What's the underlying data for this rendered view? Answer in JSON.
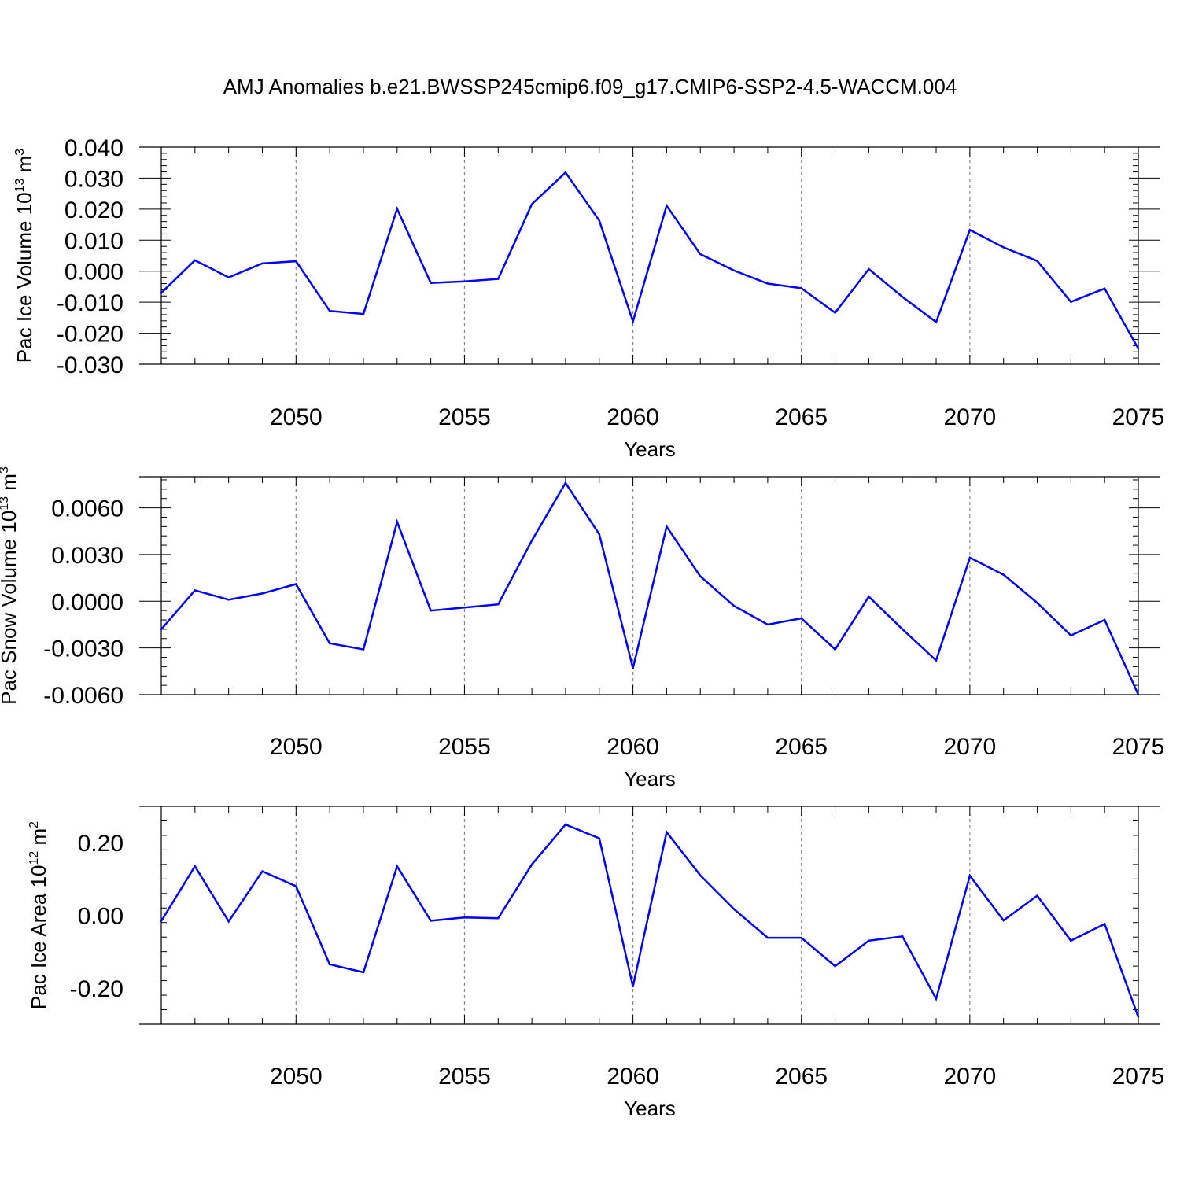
{
  "title": "AMJ Anomalies b.e21.BWSSP245cmip6.f09_g17.CMIP6-SSP2-4.5-WACCM.004",
  "colors": {
    "line": "#0000ff",
    "axis": "#000000",
    "grid": "#888888"
  },
  "chart_data": [
    {
      "type": "line",
      "title": "",
      "xlabel": "Years",
      "ylabel": {
        "base": "Pac Ice Volume 10",
        "exp": "13",
        "unit": " m",
        "unit_exp": "3"
      },
      "xlim": [
        2046,
        2075
      ],
      "ylim": [
        -0.03,
        0.04
      ],
      "xticks": [
        2050,
        2055,
        2060,
        2065,
        2070,
        2075
      ],
      "xtick_labels": [
        "2050",
        "2055",
        "2060",
        "2065",
        "2070",
        "2075"
      ],
      "yticks": [
        -0.03,
        -0.02,
        -0.01,
        0.0,
        0.01,
        0.02,
        0.03,
        0.04
      ],
      "ytick_labels": [
        "-0.030",
        "-0.020",
        "-0.010",
        "0.000",
        "0.010",
        "0.020",
        "0.030",
        "0.040"
      ],
      "grid": "vertical dashed at major x ticks",
      "series": [
        {
          "x": [
            2046,
            2047,
            2048,
            2049,
            2050,
            2051,
            2052,
            2053,
            2054,
            2055,
            2056,
            2057,
            2058,
            2059,
            2060,
            2061,
            2062,
            2063,
            2064,
            2065,
            2066,
            2067,
            2068,
            2069,
            2070,
            2071,
            2072,
            2073,
            2074,
            2075
          ],
          "values": [
            -0.007,
            0.0035,
            -0.002,
            0.0025,
            0.0032,
            -0.0128,
            -0.0138,
            0.0201,
            -0.0038,
            -0.0033,
            -0.0025,
            0.0216,
            0.0318,
            0.0163,
            -0.0162,
            0.0211,
            0.0055,
            0.0002,
            -0.004,
            -0.0055,
            -0.0134,
            0.0007,
            -0.0083,
            -0.0164,
            0.0133,
            0.0077,
            0.0033,
            -0.0099,
            -0.0056,
            -0.025
          ]
        }
      ]
    },
    {
      "type": "line",
      "title": "",
      "xlabel": "Years",
      "ylabel": {
        "base": "Pac Snow Volume 10",
        "exp": "13",
        "unit": " m",
        "unit_exp": "3"
      },
      "xlim": [
        2046,
        2075
      ],
      "ylim": [
        -0.006,
        0.008
      ],
      "xticks": [
        2050,
        2055,
        2060,
        2065,
        2070,
        2075
      ],
      "xtick_labels": [
        "2050",
        "2055",
        "2060",
        "2065",
        "2070",
        "2075"
      ],
      "yticks": [
        -0.006,
        -0.003,
        0.0,
        0.003,
        0.006
      ],
      "ytick_labels": [
        "-0.0060",
        "-0.0030",
        "0.0000",
        "0.0030",
        "0.0060"
      ],
      "grid": "vertical dashed at major x ticks",
      "series": [
        {
          "x": [
            2046,
            2047,
            2048,
            2049,
            2050,
            2051,
            2052,
            2053,
            2054,
            2055,
            2056,
            2057,
            2058,
            2059,
            2060,
            2061,
            2062,
            2063,
            2064,
            2065,
            2066,
            2067,
            2068,
            2069,
            2070,
            2071,
            2072,
            2073,
            2074,
            2075
          ],
          "values": [
            -0.0018,
            0.0007,
            0.0001,
            0.0005,
            0.0011,
            -0.0027,
            -0.0031,
            0.0051,
            -0.0006,
            -0.0004,
            -0.0002,
            0.0039,
            0.0076,
            0.0043,
            -0.0043,
            0.0048,
            0.0016,
            -0.0003,
            -0.0015,
            -0.0011,
            -0.0031,
            0.0003,
            -0.0018,
            -0.0038,
            0.0028,
            0.0017,
            -0.0001,
            -0.0022,
            -0.0012,
            -0.006
          ]
        }
      ]
    },
    {
      "type": "line",
      "title": "",
      "xlabel": "Years",
      "ylabel": {
        "base": "Pac Ice Area 10",
        "exp": "12",
        "unit": " m",
        "unit_exp": "2"
      },
      "xlim": [
        2046,
        2075
      ],
      "ylim": [
        -0.3,
        0.3
      ],
      "xticks": [
        2050,
        2055,
        2060,
        2065,
        2070,
        2075
      ],
      "xtick_labels": [
        "2050",
        "2055",
        "2060",
        "2065",
        "2070",
        "2075"
      ],
      "yticks": [
        -0.2,
        0.0,
        0.2
      ],
      "ytick_labels": [
        "-0.20",
        "0.00",
        "0.20"
      ],
      "grid": "vertical dashed at major x ticks",
      "series": [
        {
          "x": [
            2046,
            2047,
            2048,
            2049,
            2050,
            2051,
            2052,
            2053,
            2054,
            2055,
            2056,
            2057,
            2058,
            2059,
            2060,
            2061,
            2062,
            2063,
            2064,
            2065,
            2066,
            2067,
            2068,
            2069,
            2070,
            2071,
            2072,
            2073,
            2074,
            2075
          ],
          "values": [
            -0.016,
            0.135,
            -0.017,
            0.121,
            0.08,
            -0.135,
            -0.157,
            0.135,
            -0.015,
            -0.006,
            -0.008,
            0.14,
            0.25,
            0.212,
            -0.196,
            0.229,
            0.11,
            0.017,
            -0.062,
            -0.062,
            -0.14,
            -0.07,
            -0.058,
            -0.23,
            0.109,
            -0.014,
            0.054,
            -0.07,
            -0.024,
            -0.28
          ]
        }
      ]
    }
  ]
}
